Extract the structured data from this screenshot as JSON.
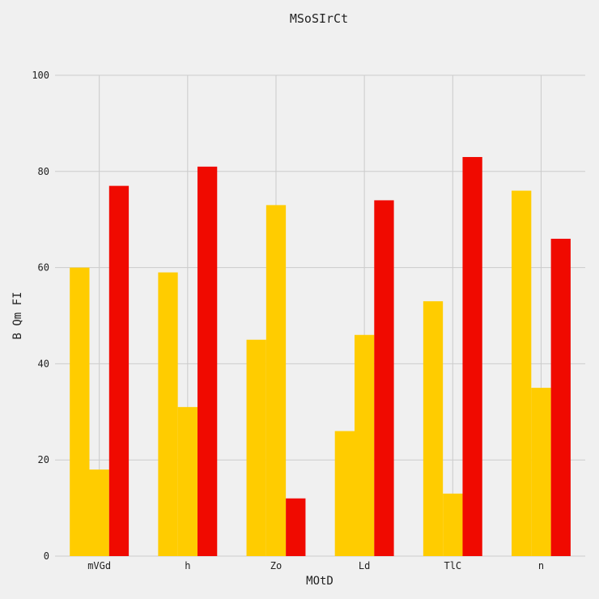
{
  "chart_data": {
    "type": "bar",
    "title": "MSoSIrCt",
    "xlabel": "MOtD",
    "ylabel": "B Qm FI",
    "categories": [
      "mVGd",
      "h",
      "Zo",
      "Ld",
      "TlC",
      "n"
    ],
    "ylim": [
      0,
      100
    ],
    "yticks": [
      0,
      20,
      40,
      60,
      80,
      100
    ],
    "grid": true,
    "series": [
      {
        "color": "#ffcc00",
        "values": [
          60,
          59,
          45,
          26,
          53,
          76
        ]
      },
      {
        "color": "#ffcc00",
        "values": [
          18,
          31,
          73,
          46,
          13,
          35
        ]
      },
      {
        "color": "#f00a00",
        "values": [
          77,
          81,
          12,
          74,
          83,
          66
        ]
      }
    ]
  }
}
